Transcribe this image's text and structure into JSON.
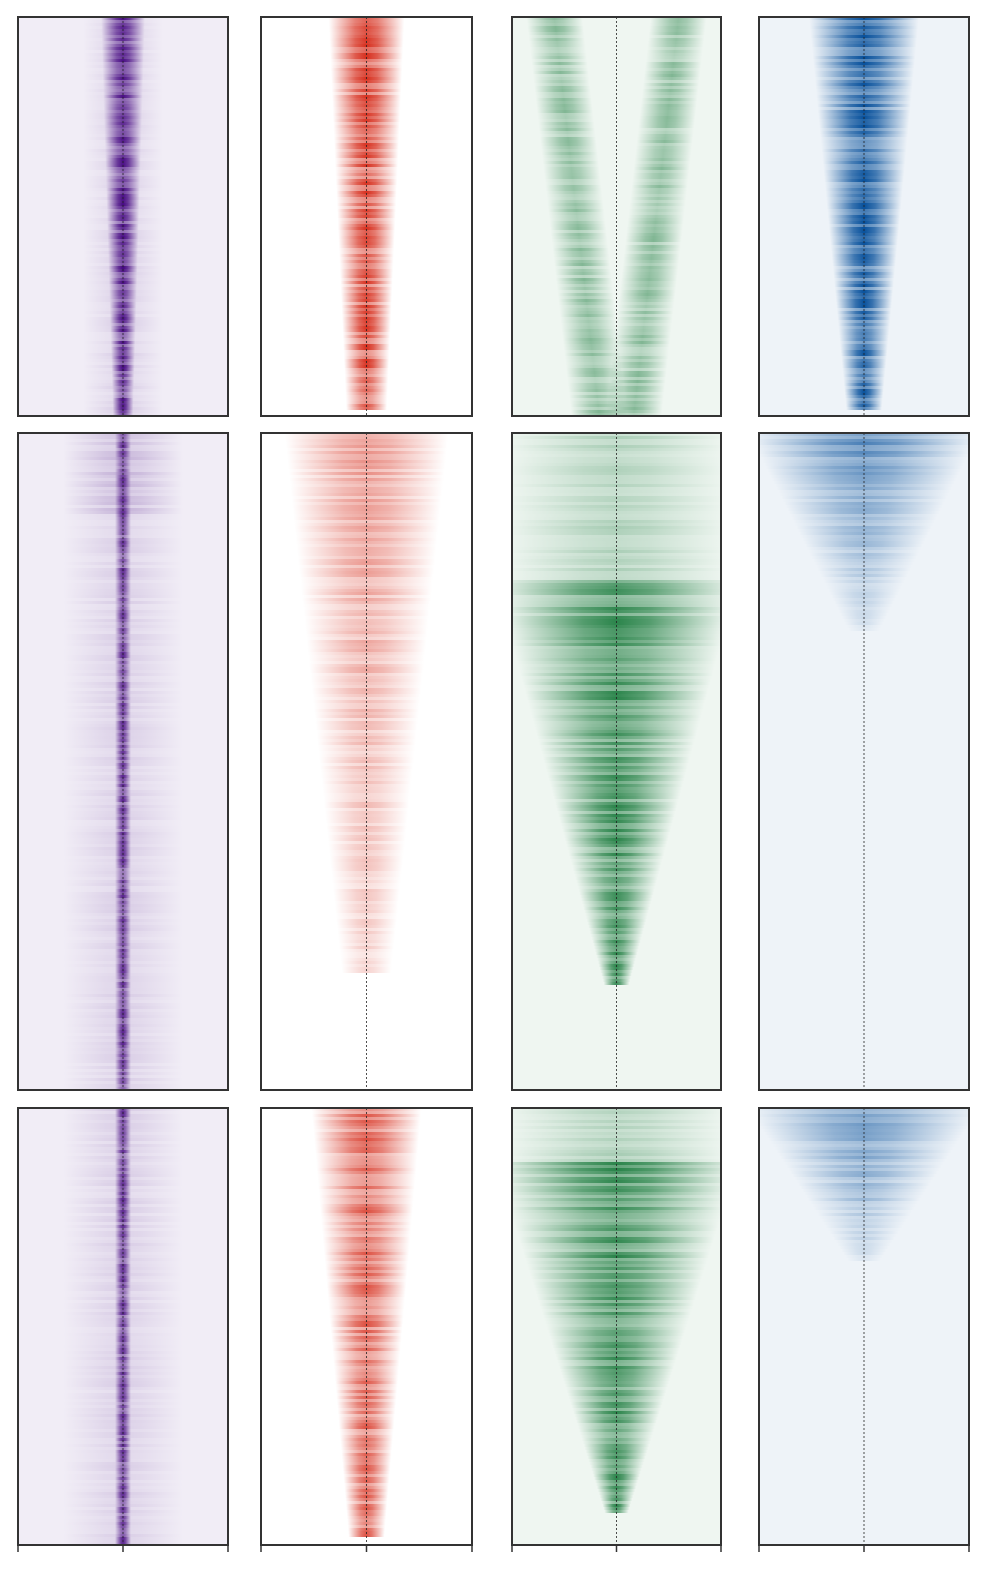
{
  "chart_data": [
    {
      "type": "heatmap",
      "color": "#3f007d"
    },
    {
      "type": "heatmap",
      "color": "#d7301f"
    },
    {
      "type": "heatmap",
      "color": "#17793a"
    },
    {
      "type": "heatmap",
      "color": "#08519c"
    },
    {
      "type": "heatmap",
      "color": "#3f007d"
    },
    {
      "type": "heatmap",
      "color": "#d7301f"
    },
    {
      "type": "heatmap",
      "color": "#17793a"
    },
    {
      "type": "heatmap",
      "color": "#08519c"
    },
    {
      "type": "heatmap",
      "color": "#3f007d"
    },
    {
      "type": "heatmap",
      "color": "#d7301f"
    },
    {
      "type": "heatmap",
      "color": "#17793a"
    },
    {
      "type": "heatmap",
      "color": "#08519c"
    }
  ]
}
